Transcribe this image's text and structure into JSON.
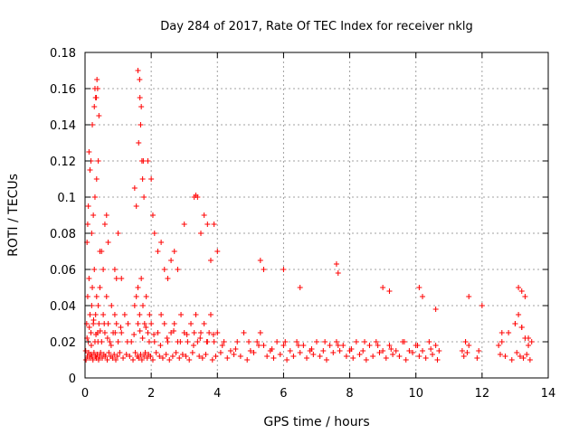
{
  "chart_data": {
    "type": "scatter",
    "title": "Day 284 of 2017, Rate Of TEC Index for receiver nklg",
    "xlabel": "GPS time / hours",
    "ylabel": "ROTI / TECUs",
    "xlim": [
      0,
      14
    ],
    "ylim": [
      0,
      0.18
    ],
    "xticks": [
      "0",
      "2",
      "4",
      "6",
      "8",
      "10",
      "12",
      "14"
    ],
    "yticks": [
      "0",
      "0.02",
      "0.04",
      "0.06",
      "0.08",
      "0.1",
      "0.12",
      "0.14",
      "0.16",
      "0.18"
    ],
    "grid": true,
    "marker": "+",
    "color": "#ff0000",
    "series": [
      {
        "name": "ROTI",
        "x": [
          0.02,
          0.05,
          0.08,
          0.1,
          0.12,
          0.15,
          0.18,
          0.2,
          0.22,
          0.25,
          0.28,
          0.3,
          0.32,
          0.35,
          0.38,
          0.4,
          0.42,
          0.45,
          0.5,
          0.55,
          0.6,
          0.65,
          0.7,
          0.75,
          0.8,
          0.85,
          0.9,
          0.95,
          1.0,
          1.1,
          1.2,
          1.3,
          1.4,
          1.5,
          1.55,
          1.6,
          1.65,
          1.7,
          1.75,
          1.8,
          1.85,
          1.9,
          1.95,
          2.0,
          2.1,
          2.2,
          2.3,
          2.4,
          2.5,
          2.6,
          2.7,
          2.8,
          2.9,
          3.0,
          3.1,
          3.2,
          3.3,
          3.35,
          3.4,
          3.5,
          3.6,
          3.7,
          3.75,
          3.8,
          3.9,
          4.0,
          4.2,
          4.4,
          4.6,
          4.8,
          5.0,
          5.2,
          5.3,
          5.4,
          5.6,
          5.8,
          6.0,
          6.2,
          6.4,
          6.6,
          6.8,
          7.0,
          7.2,
          7.4,
          7.6,
          7.7,
          7.8,
          8.0,
          8.2,
          8.4,
          8.6,
          8.8,
          9.0,
          9.2,
          9.4,
          9.6,
          9.8,
          10.0,
          10.2,
          10.4,
          10.6,
          10.7,
          11.4,
          11.5,
          11.6,
          11.9,
          12.5,
          12.6,
          12.8,
          13.0,
          13.1,
          13.2,
          13.3,
          13.4,
          13.5,
          0.03,
          0.07,
          0.11,
          0.14,
          0.17,
          0.21,
          0.24,
          0.27,
          0.31,
          0.34,
          0.37,
          0.41,
          0.44,
          0.47,
          0.52,
          0.57,
          0.62,
          0.67,
          0.72,
          0.77,
          0.83,
          0.88,
          0.93,
          0.98,
          1.05,
          1.15,
          1.25,
          1.35,
          1.45,
          1.52,
          1.58,
          1.62,
          1.68,
          1.72,
          1.78,
          1.82,
          1.88,
          1.92,
          1.98,
          2.05,
          2.15,
          2.25,
          2.35,
          2.45,
          2.55,
          2.65,
          2.75,
          2.85,
          2.95,
          3.05,
          3.15,
          3.25,
          3.45,
          3.55,
          3.65,
          3.85,
          3.95,
          4.1,
          4.3,
          4.5,
          4.7,
          4.9,
          5.1,
          5.5,
          5.7,
          5.9,
          6.1,
          6.3,
          6.5,
          6.7,
          6.9,
          7.1,
          7.3,
          7.5,
          7.9,
          8.1,
          8.3,
          8.5,
          8.7,
          8.9,
          9.1,
          9.3,
          9.5,
          9.7,
          9.9,
          10.1,
          10.3,
          10.5,
          10.65,
          11.45,
          11.55,
          11.85,
          12.55,
          12.7,
          12.9,
          13.05,
          13.15,
          13.25,
          13.35,
          13.45,
          0.06,
          0.13,
          0.19,
          0.26,
          0.33,
          0.39,
          0.46,
          0.58,
          0.68,
          0.79,
          0.91,
          1.08,
          1.28,
          1.48,
          1.6,
          1.66,
          1.74,
          1.84,
          1.94,
          2.08,
          2.28,
          2.48,
          2.68,
          2.88,
          3.08,
          3.28,
          3.48,
          3.68,
          3.88,
          4.15,
          4.55,
          4.95,
          5.25,
          5.65,
          6.05,
          6.45,
          6.85,
          7.25,
          7.65,
          8.05,
          8.45,
          8.85,
          9.25,
          9.65,
          10.05,
          10.45,
          11.5,
          12.6,
          13.0,
          13.2,
          13.4,
          0.2,
          0.25,
          0.3,
          0.35,
          0.4,
          0.45,
          0.3,
          0.32,
          0.28,
          0.38,
          0.22,
          0.18,
          0.42,
          0.36,
          0.34,
          1.6,
          1.65,
          1.7,
          1.68,
          1.72,
          1.66,
          1.74,
          1.62,
          1.78,
          1.76,
          0.5,
          0.55,
          0.6,
          0.65,
          0.7,
          1.9,
          2.0,
          2.05,
          2.1,
          2.2,
          2.3,
          2.4,
          2.5,
          3.3,
          3.35,
          3.4,
          3.0,
          3.6,
          3.7,
          0.12,
          0.15,
          0.1,
          0.08,
          0.06,
          1.5,
          1.55,
          0.9,
          0.95,
          1.0,
          1.1,
          2.6,
          2.7,
          2.8,
          3.5,
          3.8,
          3.9,
          4.0,
          5.3,
          5.4,
          6.0,
          6.5,
          7.6,
          7.65,
          9.0,
          9.2,
          10.1,
          10.2,
          10.6,
          11.6,
          12.0,
          13.1,
          13.2,
          13.3
        ],
        "y": [
          0.015,
          0.03,
          0.045,
          0.02,
          0.055,
          0.035,
          0.025,
          0.04,
          0.05,
          0.03,
          0.06,
          0.02,
          0.035,
          0.045,
          0.025,
          0.04,
          0.03,
          0.05,
          0.02,
          0.035,
          0.025,
          0.045,
          0.03,
          0.02,
          0.04,
          0.025,
          0.035,
          0.03,
          0.02,
          0.025,
          0.035,
          0.03,
          0.02,
          0.04,
          0.045,
          0.05,
          0.035,
          0.055,
          0.04,
          0.03,
          0.045,
          0.025,
          0.035,
          0.03,
          0.02,
          0.025,
          0.035,
          0.03,
          0.02,
          0.025,
          0.03,
          0.02,
          0.035,
          0.025,
          0.02,
          0.03,
          0.025,
          0.035,
          0.02,
          0.025,
          0.03,
          0.02,
          0.025,
          0.035,
          0.02,
          0.025,
          0.02,
          0.015,
          0.02,
          0.025,
          0.015,
          0.02,
          0.025,
          0.018,
          0.015,
          0.02,
          0.018,
          0.015,
          0.02,
          0.018,
          0.015,
          0.02,
          0.015,
          0.018,
          0.02,
          0.015,
          0.018,
          0.015,
          0.02,
          0.015,
          0.018,
          0.02,
          0.015,
          0.018,
          0.015,
          0.02,
          0.015,
          0.018,
          0.015,
          0.02,
          0.018,
          0.015,
          0.015,
          0.02,
          0.018,
          0.015,
          0.018,
          0.02,
          0.025,
          0.03,
          0.035,
          0.028,
          0.022,
          0.018,
          0.02,
          0.01,
          0.012,
          0.014,
          0.011,
          0.013,
          0.012,
          0.01,
          0.014,
          0.012,
          0.011,
          0.013,
          0.01,
          0.012,
          0.014,
          0.011,
          0.013,
          0.012,
          0.01,
          0.014,
          0.012,
          0.011,
          0.013,
          0.01,
          0.012,
          0.014,
          0.011,
          0.013,
          0.012,
          0.01,
          0.014,
          0.012,
          0.011,
          0.013,
          0.01,
          0.012,
          0.014,
          0.011,
          0.013,
          0.012,
          0.01,
          0.014,
          0.012,
          0.011,
          0.013,
          0.01,
          0.012,
          0.014,
          0.011,
          0.013,
          0.012,
          0.01,
          0.014,
          0.012,
          0.011,
          0.013,
          0.01,
          0.012,
          0.014,
          0.011,
          0.013,
          0.012,
          0.01,
          0.014,
          0.012,
          0.011,
          0.013,
          0.01,
          0.012,
          0.014,
          0.011,
          0.013,
          0.012,
          0.01,
          0.014,
          0.012,
          0.011,
          0.013,
          0.01,
          0.012,
          0.014,
          0.011,
          0.013,
          0.012,
          0.01,
          0.014,
          0.012,
          0.011,
          0.013,
          0.01,
          0.012,
          0.014,
          0.011,
          0.013,
          0.012,
          0.01,
          0.014,
          0.012,
          0.011,
          0.013,
          0.01,
          0.022,
          0.028,
          0.018,
          0.032,
          0.024,
          0.02,
          0.026,
          0.03,
          0.022,
          0.018,
          0.025,
          0.028,
          0.02,
          0.024,
          0.03,
          0.026,
          0.022,
          0.028,
          0.02,
          0.024,
          0.018,
          0.022,
          0.026,
          0.02,
          0.024,
          0.018,
          0.022,
          0.02,
          0.024,
          0.018,
          0.016,
          0.02,
          0.018,
          0.016,
          0.02,
          0.018,
          0.016,
          0.02,
          0.018,
          0.016,
          0.02,
          0.018,
          0.016,
          0.02,
          0.018,
          0.016,
          0.02,
          0.025,
          0.03,
          0.028,
          0.022,
          0.08,
          0.09,
          0.1,
          0.11,
          0.12,
          0.07,
          0.16,
          0.155,
          0.15,
          0.16,
          0.14,
          0.12,
          0.145,
          0.165,
          0.155,
          0.17,
          0.165,
          0.15,
          0.14,
          0.12,
          0.155,
          0.11,
          0.13,
          0.1,
          0.12,
          0.07,
          0.06,
          0.085,
          0.09,
          0.075,
          0.12,
          0.11,
          0.09,
          0.08,
          0.07,
          0.075,
          0.06,
          0.055,
          0.1,
          0.101,
          0.1,
          0.085,
          0.09,
          0.085,
          0.125,
          0.115,
          0.095,
          0.085,
          0.075,
          0.105,
          0.095,
          0.06,
          0.055,
          0.08,
          0.055,
          0.065,
          0.07,
          0.06,
          0.08,
          0.065,
          0.085,
          0.07,
          0.065,
          0.06,
          0.06,
          0.05,
          0.063,
          0.058,
          0.05,
          0.048,
          0.05,
          0.045,
          0.038,
          0.045,
          0.04,
          0.05,
          0.048,
          0.045
        ]
      }
    ]
  }
}
